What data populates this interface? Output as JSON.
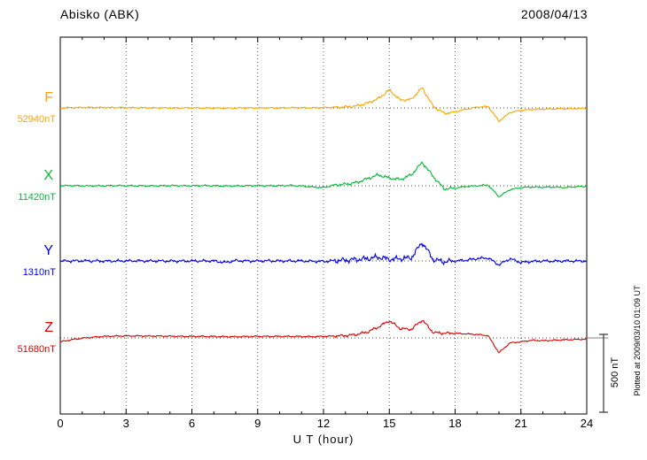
{
  "header": {
    "station": "Abisko (ABK)",
    "date": "2008/04/13"
  },
  "x_axis": {
    "label": "U T (hour)",
    "ticks": [
      "0",
      "3",
      "6",
      "9",
      "12",
      "15",
      "18",
      "21",
      "24"
    ],
    "min": 0,
    "max": 24
  },
  "scale_bar": {
    "label": "500 nT",
    "value_nT": 500
  },
  "plot_note": "Plotted at 2009/03/10 01:09 UT",
  "chart_data": {
    "type": "line",
    "title": "Abisko (ABK) magnetogram 2008/04/13",
    "xlabel": "U T (hour)",
    "ylabel": "nT",
    "x_range_hours": [
      0,
      24
    ],
    "x_step_hours": 0.5,
    "scale_bar_nT": 500,
    "grid": "dotted vertical every 3 h, dotted horizontal baseline per trace",
    "series": [
      {
        "name": "F",
        "baseline_label": "52940nT",
        "baseline_nT": 52940,
        "color": "#ffa500",
        "offsets_nT": [
          0,
          2,
          3,
          3,
          2,
          2,
          2,
          1,
          1,
          0,
          0,
          0,
          0,
          -1,
          -1,
          -2,
          -1,
          0,
          0,
          0,
          0,
          1,
          1,
          0,
          2,
          4,
          6,
          12,
          30,
          60,
          115,
          50,
          55,
          130,
          10,
          -35,
          -25,
          -8,
          5,
          10,
          -85,
          -30,
          -15,
          -10,
          -8,
          -6,
          -5,
          -4,
          -3
        ]
      },
      {
        "name": "X",
        "baseline_label": "11420nT",
        "baseline_nT": 11420,
        "color": "#00bb33",
        "offsets_nT": [
          0,
          1,
          0,
          -1,
          0,
          1,
          0,
          0,
          -1,
          0,
          1,
          0,
          0,
          1,
          0,
          -2,
          -1,
          0,
          1,
          0,
          0,
          2,
          -2,
          -8,
          -12,
          5,
          10,
          20,
          45,
          70,
          50,
          40,
          70,
          150,
          60,
          -20,
          -15,
          -5,
          0,
          5,
          -70,
          -25,
          -12,
          -8,
          -10,
          -8,
          -12,
          -6,
          -4
        ]
      },
      {
        "name": "Y",
        "baseline_label": "1310nT",
        "baseline_nT": 1310,
        "color": "#0000ee",
        "offsets_nT": [
          0,
          0,
          1,
          0,
          -1,
          0,
          0,
          1,
          0,
          0,
          0,
          -1,
          0,
          0,
          0,
          -10,
          2,
          0,
          0,
          1,
          0,
          0,
          0,
          -2,
          -3,
          2,
          5,
          10,
          15,
          25,
          10,
          15,
          20,
          120,
          10,
          -5,
          0,
          5,
          15,
          20,
          -25,
          15,
          -10,
          -3,
          0,
          -2,
          0,
          -1,
          0
        ]
      },
      {
        "name": "Z",
        "baseline_label": "51680nT",
        "baseline_nT": 51680,
        "color": "#dd0000",
        "offsets_nT": [
          -25,
          -12,
          -2,
          5,
          10,
          12,
          13,
          13,
          12,
          12,
          11,
          10,
          10,
          10,
          9,
          8,
          8,
          9,
          10,
          10,
          10,
          10,
          9,
          8,
          10,
          12,
          15,
          22,
          38,
          70,
          110,
          60,
          55,
          115,
          35,
          30,
          30,
          26,
          22,
          15,
          -95,
          -32,
          -25,
          -15,
          -18,
          -15,
          -12,
          -10,
          -8
        ]
      }
    ]
  }
}
